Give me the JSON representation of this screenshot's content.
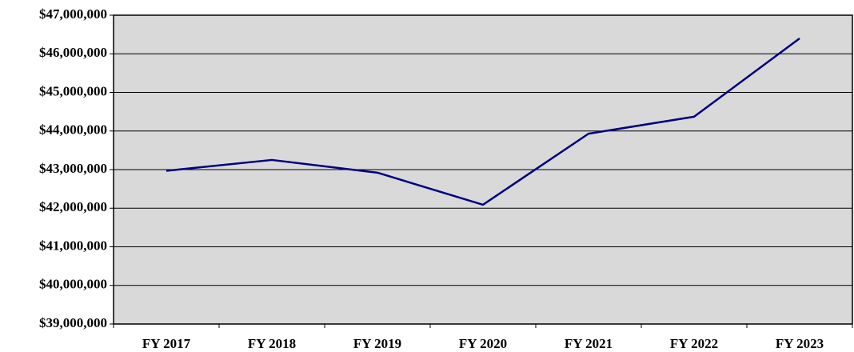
{
  "chart_data": {
    "type": "line",
    "categories": [
      "FY 2017",
      "FY 2018",
      "FY 2019",
      "FY 2020",
      "FY 2021",
      "FY 2022",
      "FY 2023"
    ],
    "series": [
      {
        "color": "#000080",
        "values": [
          42970000,
          43250000,
          42920000,
          42090000,
          43930000,
          44370000,
          46400000
        ]
      }
    ],
    "ylim": [
      39000000,
      47000000
    ],
    "yticks": [
      {
        "value": 39000000,
        "label": "$39,000,000"
      },
      {
        "value": 40000000,
        "label": "$40,000,000"
      },
      {
        "value": 41000000,
        "label": "$41,000,000"
      },
      {
        "value": 42000000,
        "label": "$42,000,000"
      },
      {
        "value": 43000000,
        "label": "$43,000,000"
      },
      {
        "value": 44000000,
        "label": "$44,000,000"
      },
      {
        "value": 45000000,
        "label": "$45,000,000"
      },
      {
        "value": 46000000,
        "label": "$46,000,000"
      },
      {
        "value": 47000000,
        "label": "$47,000,000"
      }
    ],
    "grid": true
  }
}
